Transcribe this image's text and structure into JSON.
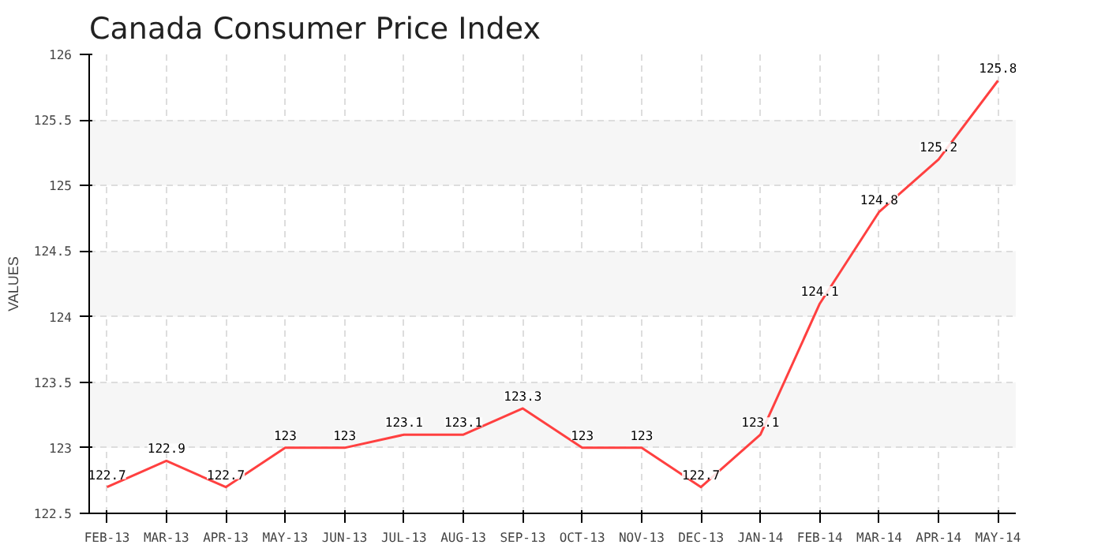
{
  "chart_data": {
    "type": "line",
    "title": "Canada Consumer Price Index",
    "ylabel": "VALUES",
    "categories": [
      "FEB-13",
      "MAR-13",
      "APR-13",
      "MAY-13",
      "JUN-13",
      "JUL-13",
      "AUG-13",
      "SEP-13",
      "OCT-13",
      "NOV-13",
      "DEC-13",
      "JAN-14",
      "FEB-14",
      "MAR-14",
      "APR-14",
      "MAY-14"
    ],
    "series": [
      {
        "color": "#ff4040",
        "values": [
          122.7,
          122.9,
          122.7,
          123,
          123,
          123.1,
          123.1,
          123.3,
          123,
          123,
          122.7,
          123.1,
          124.1,
          124.8,
          125.2,
          125.8
        ]
      }
    ],
    "ylim": [
      122.5,
      126
    ],
    "yticks": [
      122.5,
      123,
      123.5,
      124,
      124.5,
      125,
      125.5,
      126
    ],
    "grid": true,
    "data_labels": true,
    "line_style": "solid"
  }
}
